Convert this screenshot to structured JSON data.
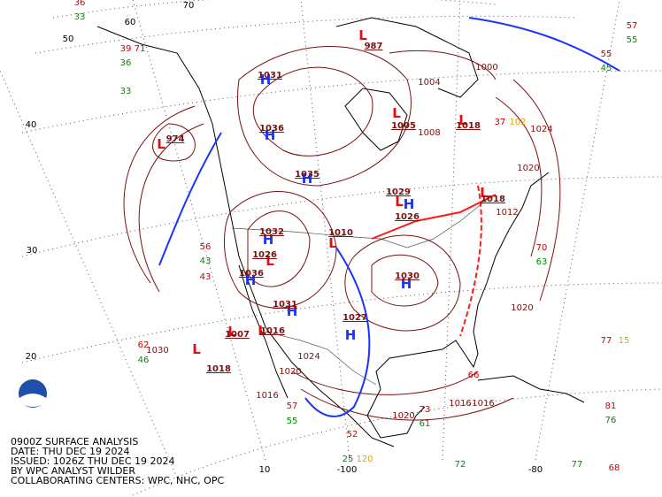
{
  "caption": [
    "0900Z SURFACE ANALYSIS",
    "DATE: THU DEC 19 2024",
    "ISSUED: 1026Z THU DEC 19 2024",
    "BY WPC ANALYST WILDER",
    "COLLABORATING CENTERS: WPC, NHC, OPC"
  ],
  "latitude_labels": [
    70,
    60,
    50,
    40,
    30,
    20,
    10
  ],
  "longitude_labels": [
    -100,
    -80
  ],
  "pressure_centers": [
    {
      "symbol": "H",
      "value": 1031
    },
    {
      "symbol": "H",
      "value": 1036
    },
    {
      "symbol": "H",
      "value": 1035
    },
    {
      "symbol": "L",
      "value": 1029
    },
    {
      "symbol": "H",
      "value": 1026
    },
    {
      "symbol": "H",
      "value": 1032
    },
    {
      "symbol": "L",
      "value": 1026
    },
    {
      "symbol": "H",
      "value": 1036
    },
    {
      "symbol": "H",
      "value": 1031
    },
    {
      "symbol": "L",
      "value": 1010
    },
    {
      "symbol": "H",
      "value": 1030
    },
    {
      "symbol": "H",
      "value": 1027
    },
    {
      "symbol": "L",
      "value": 1007
    },
    {
      "symbol": "L",
      "value": 1016
    },
    {
      "symbol": "L",
      "value": 1018
    },
    {
      "symbol": "L",
      "value": 1005
    },
    {
      "symbol": "L",
      "value": 1018
    },
    {
      "symbol": "L",
      "value": 1018
    },
    {
      "symbol": "L",
      "value": 987
    },
    {
      "symbol": "L",
      "value": 974
    }
  ],
  "isobar_labels": [
    1004,
    1024,
    1020,
    1012,
    1020,
    1020,
    1016,
    1020,
    1024,
    1030,
    1016,
    1008,
    1000,
    1016
  ],
  "station_values": [
    36,
    33,
    57,
    55,
    55,
    45,
    70,
    63,
    77,
    15,
    81,
    76,
    77,
    68,
    56,
    43,
    43,
    39,
    71,
    36,
    33,
    62,
    46,
    73,
    61,
    72,
    25,
    120,
    52,
    57,
    55,
    66,
    37,
    102
  ]
}
